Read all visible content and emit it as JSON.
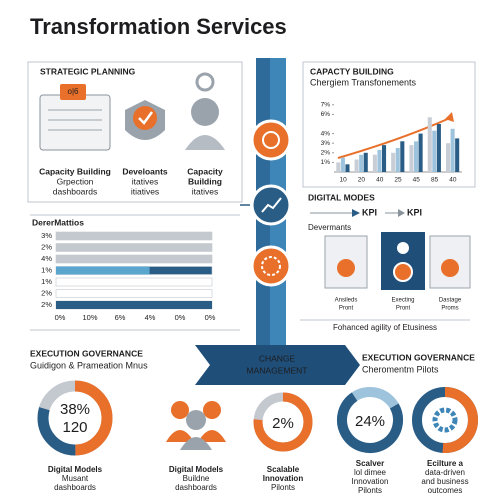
{
  "title": "Transformation Services",
  "strategic_planning": {
    "heading": "STRATEGIC PLANNING",
    "badge": "o|6",
    "items": [
      {
        "lines": [
          "Capacity Building",
          "Grpection",
          "dashboards"
        ]
      },
      {
        "lines": [
          "Develoants",
          "itatives",
          "itiatives"
        ]
      },
      {
        "lines": [
          "Capacity",
          "Building",
          "itatives"
        ]
      }
    ]
  },
  "capacity_building": {
    "heading": "CAPACTY BUILDING",
    "subtitle": "Chergiem Transfonements",
    "chart": {
      "type": "bar",
      "categories": [
        "10",
        "20",
        "40",
        "25",
        "45",
        "85",
        "40"
      ],
      "series": [
        {
          "color": "#c9ced6",
          "values": [
            1.0,
            1.3,
            1.8,
            2.0,
            2.8,
            5.7,
            3.0
          ]
        },
        {
          "color": "#9ec3dc",
          "values": [
            1.5,
            1.8,
            2.3,
            2.5,
            3.2,
            4.3,
            4.5
          ]
        },
        {
          "color": "#2a5d86",
          "values": [
            0.8,
            2.0,
            2.8,
            3.2,
            4.0,
            5.0,
            3.5
          ]
        }
      ],
      "ylim": [
        0,
        7.5
      ],
      "yticks": [
        {
          "value": 1,
          "label": "1%"
        },
        {
          "value": 2,
          "label": "2%"
        },
        {
          "value": 3,
          "label": "3%"
        },
        {
          "value": 4,
          "label": "4%"
        },
        {
          "value": 6,
          "label": "6%"
        },
        {
          "value": 7,
          "label": "7%"
        }
      ]
    }
  },
  "digital_modes": {
    "heading": "DIGITAL MODES",
    "kpis": [
      "KPI",
      "KPI"
    ],
    "subheading": "Devermants",
    "cards": [
      [
        "Ansileds",
        "Pront"
      ],
      [
        "Execting",
        "Pront"
      ],
      [
        "Dastage",
        "Proms"
      ]
    ],
    "caption": "Fohanced agility of Etusiness"
  },
  "metrics": {
    "heading": "DererMattios",
    "xlim": [
      0,
      100
    ],
    "rows": [
      {
        "label": "3%",
        "value": 100,
        "color": "#c4c8cf"
      },
      {
        "label": "2%",
        "value": 100,
        "color": "#c4c8cf"
      },
      {
        "label": "4%",
        "value": 100,
        "color": "#c4c8cf"
      },
      {
        "label": "1%",
        "value": 60,
        "color": "#5aa6cf",
        "track": "#2a5d86"
      },
      {
        "label": "1%",
        "value": 0,
        "color": "#c4c8cf"
      },
      {
        "label": "2%",
        "value": 0,
        "color": "#c4c8cf"
      },
      {
        "label": "2%",
        "value": 100,
        "color": "#2a5d86"
      }
    ],
    "axis_labels": [
      "0%",
      "10%",
      "6%",
      "4%",
      "0%",
      "0%"
    ]
  },
  "change_management": [
    "CHANGE",
    "MANAGEMENT"
  ],
  "governance_left": {
    "heading": "EXECUTION GOVERNANCE",
    "subtitle": "Guidigon & Prameation Mnus"
  },
  "governance_right": {
    "heading": "EXECUTION GOVERNANCE",
    "subtitle": "Cheromentm Pilots"
  },
  "outcomes": [
    {
      "center": [
        "38%",
        "120"
      ],
      "lines": [
        "Digital Models",
        "Musant",
        "dashboards"
      ]
    },
    {
      "lines": [
        "Digital Models",
        "Buildne",
        "dashboards"
      ]
    },
    {
      "center": [
        "2%"
      ],
      "lines": [
        "Scalable",
        "Innovation",
        "Pilonts"
      ]
    },
    {
      "center": [
        "24%"
      ],
      "lines": [
        "Scalver",
        "lol dimee",
        "Innovation",
        "Pilonts"
      ]
    },
    {
      "lines": [
        "Ecilture a",
        "data-driven",
        "and business",
        "outcomes"
      ]
    }
  ]
}
